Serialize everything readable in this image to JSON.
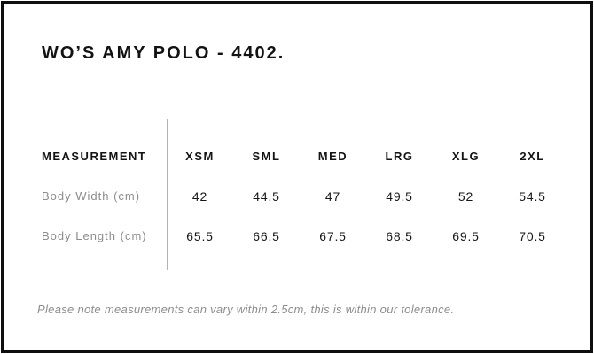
{
  "page": {
    "title": "WO’S AMY POLO - 4402.",
    "tolerance_note": "Please note measurements can vary within 2.5cm, this is within our tolerance."
  },
  "size_chart": {
    "measurement_header": "MEASUREMENT",
    "sizes": [
      "XSM",
      "SML",
      "MED",
      "LRG",
      "XLG",
      "2XL"
    ],
    "rows": [
      {
        "label": "Body Width (cm)",
        "values": [
          "42",
          "44.5",
          "47",
          "49.5",
          "52",
          "54.5"
        ]
      },
      {
        "label": "Body Length (cm)",
        "values": [
          "65.5",
          "66.5",
          "67.5",
          "68.5",
          "69.5",
          "70.5"
        ]
      }
    ]
  },
  "colors": {
    "border": "#0e0e0e",
    "heading_text": "#121212",
    "value_text": "#161616",
    "muted_text": "#8d8d8d",
    "divider": "#b5b5b5",
    "background": "#ffffff"
  },
  "chart_data": {
    "type": "table",
    "title": "WO’S AMY POLO - 4402.",
    "columns": [
      "MEASUREMENT",
      "XSM",
      "SML",
      "MED",
      "LRG",
      "XLG",
      "2XL"
    ],
    "rows": [
      [
        "Body Width (cm)",
        42,
        44.5,
        47,
        49.5,
        52,
        54.5
      ],
      [
        "Body Length (cm)",
        65.5,
        66.5,
        67.5,
        68.5,
        69.5,
        70.5
      ]
    ],
    "note": "Please note measurements can vary within 2.5cm, this is within our tolerance."
  }
}
